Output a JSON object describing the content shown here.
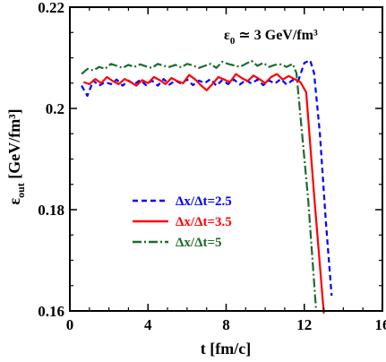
{
  "chart_data": {
    "type": "line",
    "title": "",
    "annotation": {
      "main": "ε",
      "sub": "0",
      "rest": " ≃ 3 GeV/fm³"
    },
    "xlabel": "t [fm/c]",
    "ylabel": {
      "main": "ε",
      "sub": "out",
      "rest": " [GeV/fm³]"
    },
    "xlim": [
      0,
      16
    ],
    "ylim": [
      0.16,
      0.22
    ],
    "xticks": [
      0,
      4,
      8,
      12,
      16
    ],
    "xtick_labels": [
      "0",
      "4",
      "8",
      "12",
      "16"
    ],
    "yticks": [
      0.16,
      0.18,
      0.2,
      0.22
    ],
    "ytick_labels": [
      "0.16",
      "0.18",
      "0.2",
      "0.22"
    ],
    "grid": false,
    "legend_position": "center-left",
    "series": [
      {
        "name": "Δx/Δt=2.5",
        "color": "#0000ff",
        "dash": "6,4",
        "x": [
          0.6,
          0.9,
          1.2,
          1.5,
          1.8,
          2.1,
          2.4,
          2.7,
          3.0,
          3.3,
          3.6,
          3.9,
          4.2,
          4.5,
          4.8,
          5.1,
          5.4,
          5.7,
          6.0,
          6.3,
          6.6,
          6.9,
          7.2,
          7.5,
          7.8,
          8.1,
          8.4,
          8.7,
          9.0,
          9.3,
          9.6,
          9.9,
          10.2,
          10.5,
          10.8,
          11.1,
          11.4,
          11.7,
          12.0,
          12.3,
          12.5,
          12.8,
          13.1,
          13.4
        ],
        "y": [
          0.2045,
          0.2025,
          0.2055,
          0.2045,
          0.2052,
          0.2048,
          0.2057,
          0.2045,
          0.2055,
          0.2048,
          0.2056,
          0.2046,
          0.2055,
          0.2045,
          0.2058,
          0.2047,
          0.2055,
          0.2049,
          0.2057,
          0.2046,
          0.2055,
          0.205,
          0.2058,
          0.2045,
          0.2056,
          0.2048,
          0.2057,
          0.2047,
          0.2056,
          0.2049,
          0.2057,
          0.2046,
          0.2055,
          0.2049,
          0.2058,
          0.2047,
          0.2056,
          0.2055,
          0.209,
          0.2095,
          0.207,
          0.195,
          0.178,
          0.163
        ]
      },
      {
        "name": "Δx/Δt=3.5",
        "color": "#ff0000",
        "dash": "",
        "x": [
          0.7,
          1.0,
          1.3,
          1.6,
          1.9,
          2.2,
          2.5,
          2.8,
          3.1,
          3.4,
          3.7,
          4.0,
          4.3,
          4.6,
          4.9,
          5.2,
          5.5,
          5.8,
          6.1,
          6.4,
          6.7,
          7.0,
          7.3,
          7.6,
          7.9,
          8.2,
          8.5,
          8.8,
          9.1,
          9.4,
          9.7,
          10.0,
          10.3,
          10.6,
          10.9,
          11.2,
          11.5,
          11.8,
          12.1,
          12.5,
          13.0
        ],
        "y": [
          0.2052,
          0.2048,
          0.2058,
          0.205,
          0.2062,
          0.2054,
          0.2048,
          0.2058,
          0.2052,
          0.2045,
          0.2056,
          0.205,
          0.2062,
          0.2056,
          0.2048,
          0.206,
          0.2054,
          0.205,
          0.2066,
          0.2058,
          0.2046,
          0.2036,
          0.2048,
          0.2062,
          0.2057,
          0.2052,
          0.2068,
          0.206,
          0.2054,
          0.2065,
          0.2058,
          0.205,
          0.2062,
          0.2068,
          0.2057,
          0.2064,
          0.2058,
          0.2052,
          0.2032,
          0.183,
          0.1595
        ]
      },
      {
        "name": "Δx/Δt=5",
        "color": "#1f6b2e",
        "dash": "10,3,2,3",
        "x": [
          0.6,
          0.9,
          1.2,
          1.5,
          1.8,
          2.1,
          2.4,
          2.7,
          3.0,
          3.3,
          3.6,
          3.9,
          4.2,
          4.5,
          4.8,
          5.1,
          5.4,
          5.7,
          6.0,
          6.3,
          6.6,
          6.9,
          7.2,
          7.5,
          7.8,
          8.1,
          8.4,
          8.7,
          9.0,
          9.3,
          9.6,
          9.9,
          10.2,
          10.5,
          10.8,
          11.1,
          11.4,
          11.6,
          12.2,
          12.6
        ],
        "y": [
          0.2068,
          0.2078,
          0.2075,
          0.2082,
          0.2078,
          0.2088,
          0.2084,
          0.208,
          0.2086,
          0.2082,
          0.2087,
          0.2083,
          0.208,
          0.2088,
          0.2084,
          0.2082,
          0.2086,
          0.2081,
          0.2088,
          0.2085,
          0.208,
          0.2084,
          0.2088,
          0.208,
          0.2092,
          0.2088,
          0.2085,
          0.2082,
          0.2088,
          0.2094,
          0.2084,
          0.209,
          0.2082,
          0.2086,
          0.2087,
          0.2082,
          0.2088,
          0.207,
          0.182,
          0.1605
        ]
      }
    ]
  }
}
